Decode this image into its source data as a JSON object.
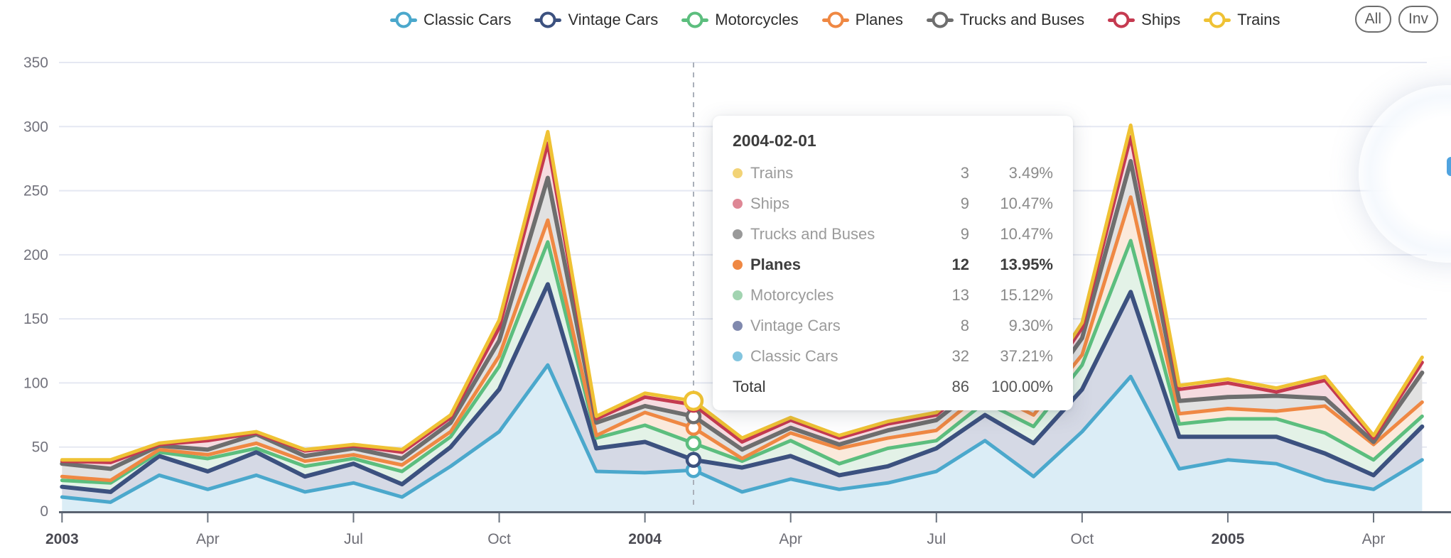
{
  "legend": {
    "items": [
      {
        "label": "Classic Cars",
        "color": "#4BA8CC"
      },
      {
        "label": "Vintage Cars",
        "color": "#3C517F"
      },
      {
        "label": "Motorcycles",
        "color": "#5CBE7E"
      },
      {
        "label": "Planes",
        "color": "#EF8843"
      },
      {
        "label": "Trucks and Buses",
        "color": "#6E6E6E"
      },
      {
        "label": "Ships",
        "color": "#C53A50"
      },
      {
        "label": "Trains",
        "color": "#EFC234"
      }
    ],
    "all_button": "All",
    "inv_button": "Inv"
  },
  "tooltip": {
    "title": "2004-02-01",
    "rows": [
      {
        "name": "Trains",
        "value": "3",
        "pct": "3.49%",
        "color": "#F2D376",
        "bold": false
      },
      {
        "name": "Ships",
        "value": "9",
        "pct": "10.47%",
        "color": "#DE8795",
        "bold": false
      },
      {
        "name": "Trucks and Buses",
        "value": "9",
        "pct": "10.47%",
        "color": "#999999",
        "bold": false
      },
      {
        "name": "Planes",
        "value": "12",
        "pct": "13.95%",
        "color": "#EF8843",
        "bold": true
      },
      {
        "name": "Motorcycles",
        "value": "13",
        "pct": "15.12%",
        "color": "#A2D4B1",
        "bold": false
      },
      {
        "name": "Vintage Cars",
        "value": "8",
        "pct": "9.30%",
        "color": "#8089AE",
        "bold": false
      },
      {
        "name": "Classic Cars",
        "value": "32",
        "pct": "37.21%",
        "color": "#83C5DF",
        "bold": false
      }
    ],
    "total_label": "Total",
    "total_value": "86",
    "total_pct": "100.00%"
  },
  "chart_data": {
    "type": "area",
    "stacked": true,
    "grid": true,
    "legend_position": "top",
    "ylim": [
      0,
      350
    ],
    "y_ticks": [
      0,
      50,
      100,
      150,
      200,
      250,
      300,
      350
    ],
    "x": [
      "2003-01",
      "2003-02",
      "2003-03",
      "2003-04",
      "2003-05",
      "2003-06",
      "2003-07",
      "2003-08",
      "2003-09",
      "2003-10",
      "2003-11",
      "2003-12",
      "2004-01",
      "2004-02",
      "2004-03",
      "2004-04",
      "2004-05",
      "2004-06",
      "2004-07",
      "2004-08",
      "2004-09",
      "2004-10",
      "2004-11",
      "2004-12",
      "2005-01",
      "2005-02",
      "2005-03",
      "2005-04",
      "2005-05"
    ],
    "x_tick_labels": [
      {
        "label": "2003",
        "index": 0,
        "bold": true
      },
      {
        "label": "Apr",
        "index": 3,
        "bold": false
      },
      {
        "label": "Jul",
        "index": 6,
        "bold": false
      },
      {
        "label": "Oct",
        "index": 9,
        "bold": false
      },
      {
        "label": "2004",
        "index": 12,
        "bold": true
      },
      {
        "label": "Apr",
        "index": 15,
        "bold": false
      },
      {
        "label": "Jul",
        "index": 18,
        "bold": false
      },
      {
        "label": "Oct",
        "index": 21,
        "bold": false
      },
      {
        "label": "2005",
        "index": 24,
        "bold": true
      },
      {
        "label": "Apr",
        "index": 27,
        "bold": false
      }
    ],
    "highlight_x": "2004-02",
    "highlight_index": 13,
    "series": [
      {
        "name": "Classic Cars",
        "color": "#4BA8CC",
        "fill": "#DBEDF6",
        "values": [
          11,
          7,
          28,
          17,
          28,
          15,
          22,
          11,
          35,
          62,
          114,
          31,
          30,
          32,
          15,
          25,
          17,
          22,
          31,
          55,
          27,
          62,
          105,
          33,
          40,
          37,
          24,
          17,
          40
        ]
      },
      {
        "name": "Vintage Cars",
        "color": "#3C517F",
        "fill": "#D5D9E5",
        "values": [
          8,
          8,
          15,
          14,
          18,
          12,
          15,
          10,
          15,
          33,
          63,
          18,
          24,
          8,
          19,
          18,
          11,
          13,
          18,
          20,
          26,
          33,
          66,
          25,
          18,
          21,
          21,
          11,
          26
        ]
      },
      {
        "name": "Motorcycles",
        "color": "#5CBE7E",
        "fill": "#E3F2E7",
        "values": [
          5,
          7,
          3,
          10,
          3,
          8,
          4,
          10,
          8,
          18,
          33,
          8,
          13,
          13,
          5,
          12,
          9,
          14,
          6,
          10,
          13,
          19,
          40,
          10,
          14,
          14,
          16,
          12,
          8
        ]
      },
      {
        "name": "Planes",
        "color": "#EF8843",
        "fill": "#FBE9DB",
        "values": [
          3,
          2,
          2,
          3,
          4,
          4,
          3,
          5,
          4,
          8,
          17,
          2,
          10,
          12,
          2,
          6,
          12,
          8,
          8,
          9,
          9,
          8,
          34,
          8,
          8,
          6,
          21,
          12,
          11
        ]
      },
      {
        "name": "Trucks and Buses",
        "color": "#6E6E6E",
        "fill": "#E1E1E1",
        "values": [
          10,
          9,
          3,
          4,
          7,
          4,
          5,
          5,
          7,
          12,
          33,
          10,
          5,
          9,
          7,
          4,
          3,
          6,
          8,
          7,
          7,
          13,
          28,
          10,
          9,
          12,
          6,
          2,
          23
        ]
      },
      {
        "name": "Ships",
        "color": "#C53A50",
        "fill": "#F6DBE0",
        "values": [
          2,
          5,
          1,
          7,
          1,
          4,
          2,
          5,
          4,
          10,
          27,
          3,
          7,
          9,
          6,
          6,
          5,
          5,
          4,
          6,
          5,
          8,
          19,
          9,
          11,
          3,
          14,
          3,
          8
        ]
      },
      {
        "name": "Trains",
        "color": "#EFC234",
        "fill": "#FCF4DB",
        "values": [
          1,
          2,
          1,
          2,
          1,
          1,
          1,
          2,
          2,
          6,
          9,
          2,
          3,
          3,
          3,
          2,
          2,
          2,
          2,
          3,
          2,
          4,
          9,
          3,
          3,
          3,
          3,
          2,
          4
        ]
      }
    ]
  },
  "colors": {
    "gridline": "#E5E8F2",
    "axis_line": "#5A6370",
    "tick": "#6A737E",
    "y_label": "#72727C",
    "x_label": "#6E6E76",
    "x_label_bold": "#4A4A52",
    "crosshair": "#A9AFB9"
  }
}
